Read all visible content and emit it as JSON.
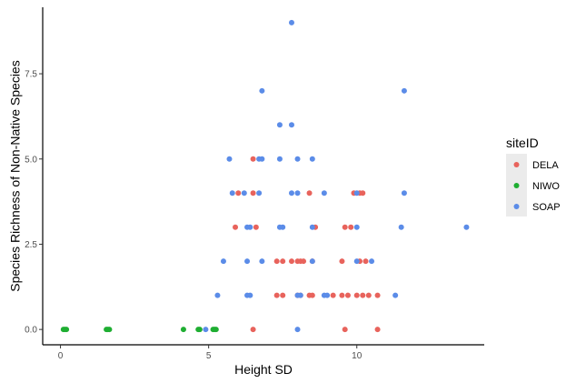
{
  "chart_data": {
    "type": "scatter",
    "title": "",
    "xlabel": "Height SD",
    "ylabel": "Species Richness of Non-Native Species",
    "xlim": [
      -0.6,
      14.3
    ],
    "ylim": [
      -0.45,
      9.45
    ],
    "x_ticks": [
      0,
      5,
      10
    ],
    "x_tick_labels": [
      "0",
      "5",
      "10"
    ],
    "y_ticks": [
      0,
      2.5,
      5,
      7.5
    ],
    "y_tick_labels": [
      "0.0",
      "2.5",
      "5.0",
      "7.5"
    ],
    "grid": false,
    "legend": {
      "title": "siteID",
      "position": "right"
    },
    "series": [
      {
        "name": "DELA",
        "color": "#E8635C",
        "points": [
          [
            6.5,
            5
          ],
          [
            6.5,
            4
          ],
          [
            6.0,
            4
          ],
          [
            8.4,
            4
          ],
          [
            9.9,
            4
          ],
          [
            10.1,
            4
          ],
          [
            10.2,
            4
          ],
          [
            5.9,
            3
          ],
          [
            6.6,
            3
          ],
          [
            8.6,
            3
          ],
          [
            9.6,
            3
          ],
          [
            9.8,
            3
          ],
          [
            7.3,
            2
          ],
          [
            7.5,
            2
          ],
          [
            7.8,
            2
          ],
          [
            8.0,
            2
          ],
          [
            8.1,
            2
          ],
          [
            8.2,
            2
          ],
          [
            8.5,
            2
          ],
          [
            9.5,
            2
          ],
          [
            10.1,
            2
          ],
          [
            10.3,
            2
          ],
          [
            7.3,
            1
          ],
          [
            7.5,
            1
          ],
          [
            8.0,
            1
          ],
          [
            8.1,
            1
          ],
          [
            8.4,
            1
          ],
          [
            8.5,
            1
          ],
          [
            9.2,
            1
          ],
          [
            9.5,
            1
          ],
          [
            9.7,
            1
          ],
          [
            10.0,
            1
          ],
          [
            10.2,
            1
          ],
          [
            10.4,
            1
          ],
          [
            10.7,
            1
          ],
          [
            6.5,
            0
          ],
          [
            9.6,
            0
          ],
          [
            10.7,
            0
          ]
        ]
      },
      {
        "name": "NIWO",
        "color": "#1FAE32",
        "points": [
          [
            0.1,
            0
          ],
          [
            0.15,
            0
          ],
          [
            0.2,
            0
          ],
          [
            1.55,
            0
          ],
          [
            1.6,
            0
          ],
          [
            1.65,
            0
          ],
          [
            4.15,
            0
          ],
          [
            4.65,
            0
          ],
          [
            4.7,
            0
          ],
          [
            5.15,
            0
          ],
          [
            5.2,
            0
          ],
          [
            5.25,
            0
          ]
        ]
      },
      {
        "name": "SOAP",
        "color": "#5B8CE8",
        "points": [
          [
            7.8,
            9
          ],
          [
            6.8,
            7
          ],
          [
            11.6,
            7
          ],
          [
            7.4,
            6
          ],
          [
            7.8,
            6
          ],
          [
            5.7,
            5
          ],
          [
            6.7,
            5
          ],
          [
            6.8,
            5
          ],
          [
            7.4,
            5
          ],
          [
            8.0,
            5
          ],
          [
            8.5,
            5
          ],
          [
            5.8,
            4
          ],
          [
            6.2,
            4
          ],
          [
            6.7,
            4
          ],
          [
            7.8,
            4
          ],
          [
            8.0,
            4
          ],
          [
            8.9,
            4
          ],
          [
            10.0,
            4
          ],
          [
            11.6,
            4
          ],
          [
            6.3,
            3
          ],
          [
            6.4,
            3
          ],
          [
            7.4,
            3
          ],
          [
            7.5,
            3
          ],
          [
            8.5,
            3
          ],
          [
            10.0,
            3
          ],
          [
            11.5,
            3
          ],
          [
            13.7,
            3
          ],
          [
            5.5,
            2
          ],
          [
            6.3,
            2
          ],
          [
            6.8,
            2
          ],
          [
            8.5,
            2
          ],
          [
            10.0,
            2
          ],
          [
            10.5,
            2
          ],
          [
            5.3,
            1
          ],
          [
            6.3,
            1
          ],
          [
            6.4,
            1
          ],
          [
            8.0,
            1
          ],
          [
            8.1,
            1
          ],
          [
            8.9,
            1
          ],
          [
            9.0,
            1
          ],
          [
            11.3,
            1
          ],
          [
            4.9,
            0
          ],
          [
            8.0,
            0
          ]
        ]
      }
    ]
  }
}
